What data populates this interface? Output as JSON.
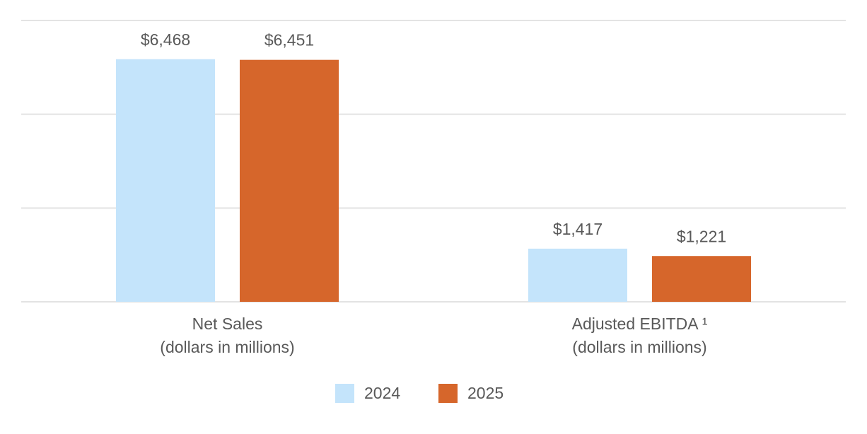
{
  "chart_data": {
    "type": "bar",
    "categories": [
      "Net Sales\n(dollars in millions)",
      "Adjusted EBITDA ¹\n(dollars in millions)"
    ],
    "series": [
      {
        "name": "2024",
        "color": "#c4e4fb",
        "values": [
          6468,
          1417
        ],
        "value_labels": [
          "$6,468",
          "$1,417"
        ]
      },
      {
        "name": "2025",
        "color": "#d6662b",
        "values": [
          6451,
          1221
        ],
        "value_labels": [
          "$6,451",
          "$1,221"
        ]
      }
    ],
    "ylim": [
      0,
      7500
    ],
    "yticks": [
      0,
      2500,
      5000,
      7500
    ],
    "grid": true,
    "legend": "bottom"
  }
}
